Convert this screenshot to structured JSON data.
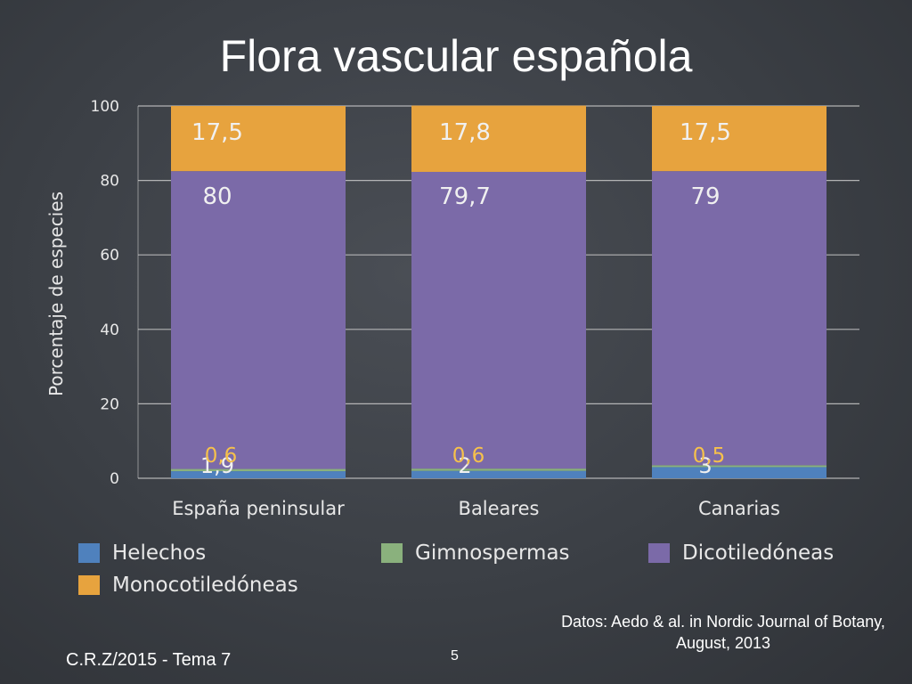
{
  "slide": {
    "title": "Flora vascular española",
    "footer_left": "C.R.Z/2015 - Tema 7",
    "page_number": "5",
    "source": "Datos: Aedo & al. in Nordic Journal of Botany, August, 2013"
  },
  "colors": {
    "Helechos": "#4f81bd",
    "Gimnospermas": "#8ab17d",
    "Dicotiledóneas": "#7b6aa8",
    "Monocotiledóneas": "#e7a33e",
    "axis_text": "#e8e8e8",
    "grid": "#c8c8c8",
    "inner_label": "#f0f0f0",
    "small_label": "#f6c14b"
  },
  "chart_data": {
    "type": "bar",
    "stacked": true,
    "title": "",
    "xlabel": "",
    "ylabel": "Porcentaje de especies",
    "ylim": [
      0,
      100
    ],
    "yticks": [
      "0",
      "20",
      "40",
      "60",
      "80",
      "100"
    ],
    "grid": true,
    "legend_position": "bottom",
    "categories": [
      "España peninsular",
      "Baleares",
      "Canarias"
    ],
    "series": [
      {
        "name": "Helechos",
        "values": [
          1.9,
          2,
          3
        ]
      },
      {
        "name": "Gimnospermas",
        "values": [
          0.6,
          0.6,
          0.5
        ]
      },
      {
        "name": "Dicotiledóneas",
        "values": [
          80,
          79.7,
          79
        ]
      },
      {
        "name": "Monocotiledóneas",
        "values": [
          17.5,
          17.8,
          17.5
        ]
      }
    ],
    "data_labels": {
      "Helechos": [
        "1,9",
        "2",
        "3"
      ],
      "Gimnospermas": [
        "0,6",
        "0,6",
        "0,5"
      ],
      "Dicotiledóneas": [
        "80",
        "79,7",
        "79"
      ],
      "Monocotiledóneas": [
        "17,5",
        "17,8",
        "17,5"
      ]
    },
    "legend": [
      "Helechos",
      "Gimnospermas",
      "Dicotiledóneas",
      "Monocotiledóneas"
    ]
  }
}
